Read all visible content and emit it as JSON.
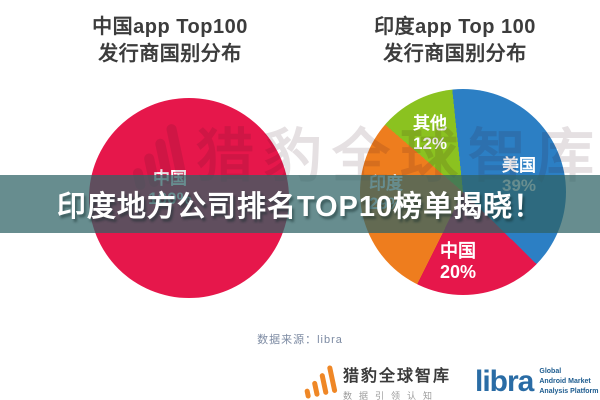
{
  "page": {
    "background": "#ffffff"
  },
  "titles": {
    "left_line1": "中国app Top100",
    "left_line2": "发行商国别分布",
    "right_line1": "印度app Top 100",
    "right_line2": "发行商国别分布"
  },
  "banner": {
    "text": "印度地方公司排名TOP10榜单揭晓！",
    "background": "rgba(47,99,101,0.73)",
    "text_color": "#ffffff"
  },
  "watermark": {
    "icon": "signal-bars-icon",
    "text": "猎豹全球智库"
  },
  "source_note": "数据来源：libra",
  "footer": {
    "cheetah": {
      "icon": "signal-bars-icon",
      "name": "猎豹全球智库",
      "tagline": "数据引领认知",
      "accent_color": "#ef8726"
    },
    "libra": {
      "wordmark": "libra",
      "desc_line1": "Global",
      "desc_line2": "Android Market",
      "desc_line3": "Analysis Platform",
      "brand_color": "#2a6ca5",
      "desc_color": "#1d5c8f"
    }
  },
  "chart_data": [
    {
      "type": "pie",
      "title": "中国app Top100 发行商国别分布",
      "labels": [
        "中国"
      ],
      "values": [
        100
      ],
      "colors": [
        "#e6174b"
      ],
      "slice_labels": [
        {
          "name": "中国",
          "pct": "100%"
        }
      ],
      "legend_position": "on-slice"
    },
    {
      "type": "pie",
      "title": "印度app Top 100 发行商国别分布",
      "labels": [
        "美国",
        "中国",
        "印度",
        "其他"
      ],
      "values": [
        39,
        20,
        29,
        12
      ],
      "colors": [
        "#2c7fc4",
        "#e6174b",
        "#ee7d1e",
        "#8bc220"
      ],
      "start_angle_deg": -6,
      "direction": "clockwise",
      "slice_labels": [
        {
          "name": "美国",
          "pct": "39%"
        },
        {
          "name": "中国",
          "pct": "20%"
        },
        {
          "name": "印度",
          "pct": "29%"
        },
        {
          "name": "其他",
          "pct": "12%"
        }
      ],
      "legend_position": "on-slice"
    }
  ]
}
